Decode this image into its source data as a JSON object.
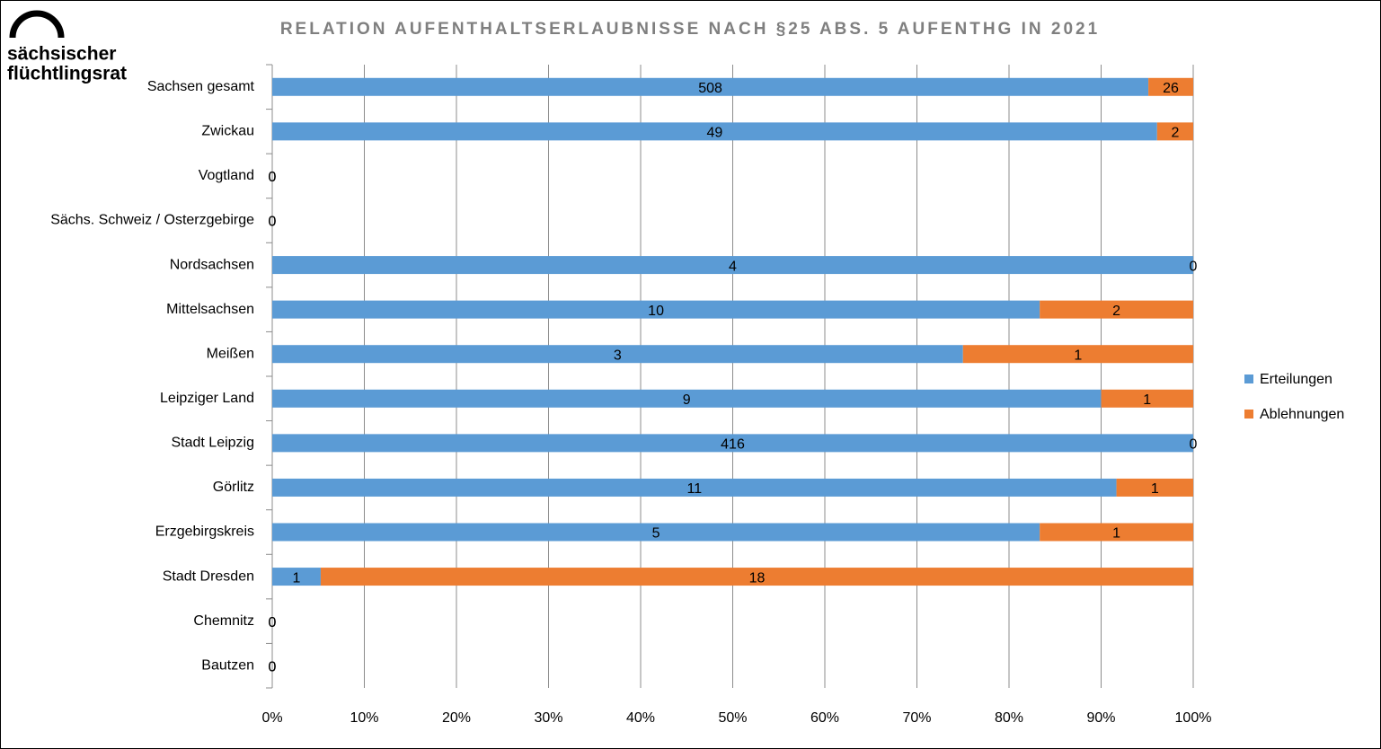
{
  "logo": {
    "line1": "sächsischer",
    "line2": "flüchtlingsrat"
  },
  "chart_data": {
    "type": "bar",
    "orientation": "horizontal",
    "stacking": "percent",
    "title": "RELATION AUFENTHALTSERLAUBNISSE NACH §25 ABS. 5 AUFENTHG IN 2021",
    "categories": [
      "Sachsen gesamt",
      "Zwickau",
      "Vogtland",
      "Sächs. Schweiz / Osterzgebirge",
      "Nordsachsen",
      "Mittelsachsen",
      "Meißen",
      "Leipziger Land",
      "Stadt Leipzig",
      "Görlitz",
      "Erzgebirgskreis",
      "Stadt Dresden",
      "Chemnitz",
      "Bautzen"
    ],
    "series": [
      {
        "name": "Erteilungen",
        "color": "#5b9bd5",
        "values": [
          508,
          49,
          0,
          0,
          4,
          10,
          3,
          9,
          416,
          11,
          5,
          1,
          0,
          0
        ]
      },
      {
        "name": "Ablehnungen",
        "color": "#ed7d31",
        "values": [
          26,
          2,
          0,
          0,
          0,
          2,
          1,
          1,
          0,
          1,
          1,
          18,
          0,
          0
        ]
      }
    ],
    "xlim": [
      0,
      100
    ],
    "xticks": [
      {
        "value": 0,
        "label": "0%"
      },
      {
        "value": 10,
        "label": "10%"
      },
      {
        "value": 20,
        "label": "20%"
      },
      {
        "value": 30,
        "label": "30%"
      },
      {
        "value": 40,
        "label": "40%"
      },
      {
        "value": 50,
        "label": "50%"
      },
      {
        "value": 60,
        "label": "60%"
      },
      {
        "value": 70,
        "label": "70%"
      },
      {
        "value": 80,
        "label": "80%"
      },
      {
        "value": 90,
        "label": "90%"
      },
      {
        "value": 100,
        "label": "100%"
      }
    ],
    "grid": true,
    "legend": "right"
  }
}
